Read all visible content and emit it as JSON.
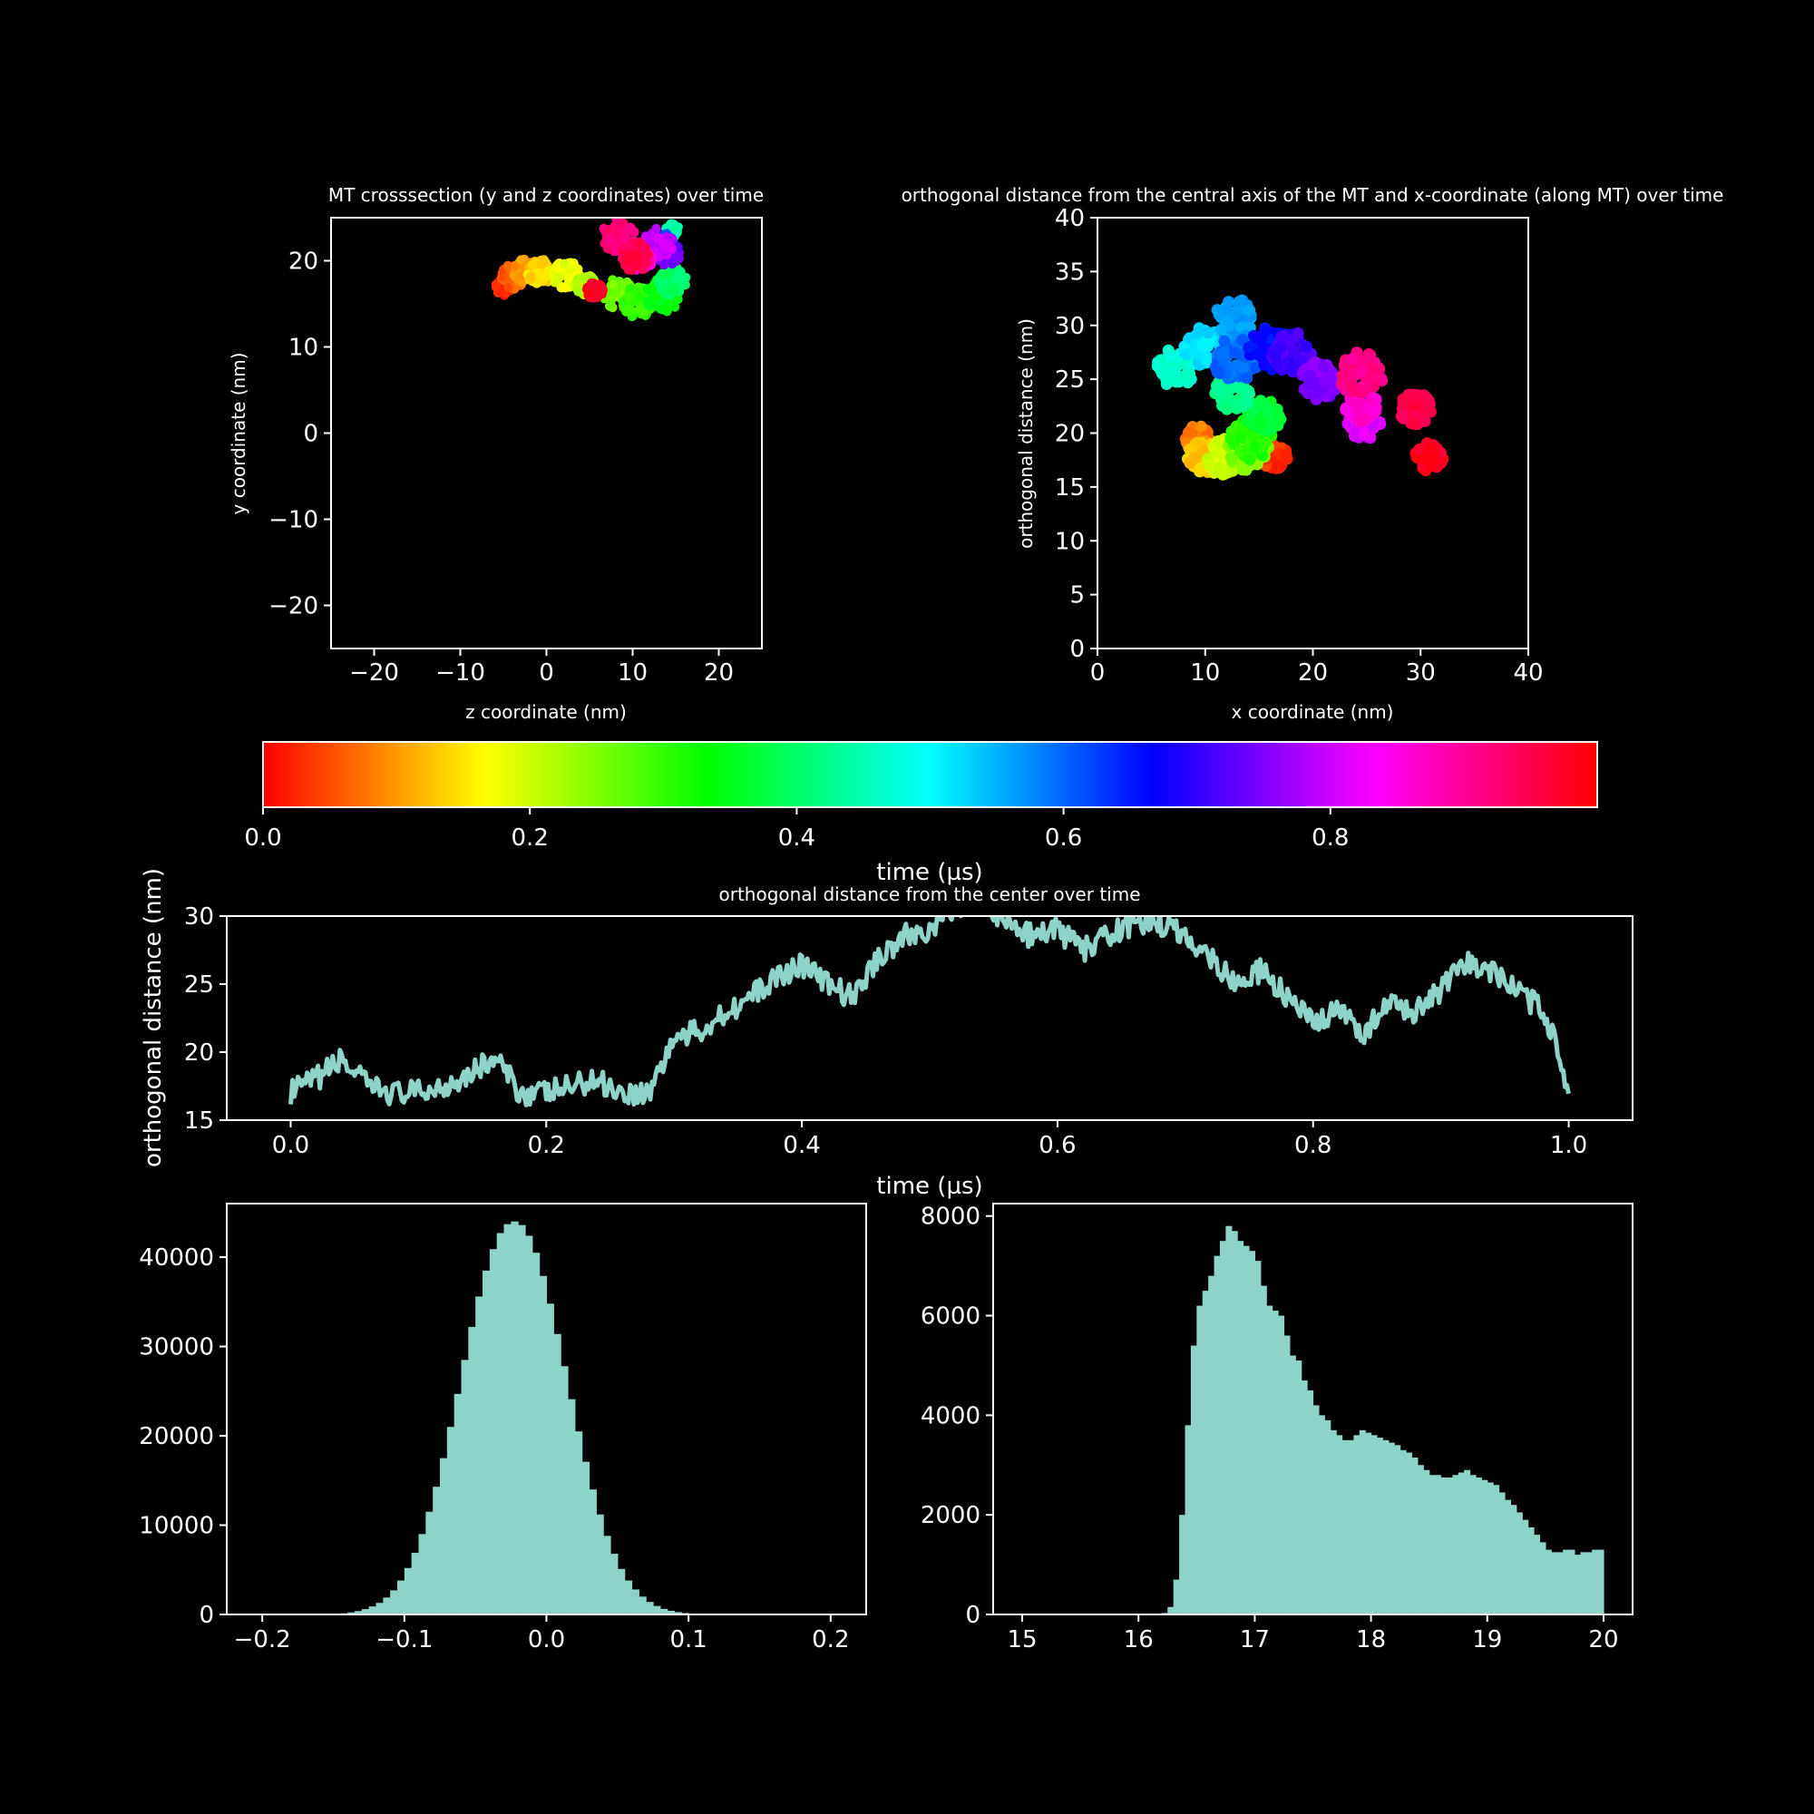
{
  "theme": {
    "background": "#000000",
    "foreground": "#ffffff",
    "series_color": "#8dd3c7"
  },
  "chart_data": [
    {
      "id": "crosssection",
      "type": "scatter",
      "title": "MT crosssection (y and z coordinates) over time",
      "xlabel": "z coordinate (nm)",
      "ylabel": "y coordinate (nm)",
      "xlim": [
        -25,
        25
      ],
      "ylim": [
        -25,
        25
      ],
      "xticks": [
        -20,
        -10,
        0,
        10,
        20
      ],
      "yticks": [
        -20,
        -10,
        0,
        10,
        20
      ],
      "color_by": "time (µs)",
      "clusters": [
        {
          "t": 0.02,
          "x": -5.0,
          "y": 17.0,
          "r": 1.0
        },
        {
          "t": 0.06,
          "x": -3.8,
          "y": 18.2,
          "r": 1.5
        },
        {
          "t": 0.1,
          "x": -2.5,
          "y": 18.8,
          "r": 1.4
        },
        {
          "t": 0.14,
          "x": -0.8,
          "y": 18.8,
          "r": 1.6
        },
        {
          "t": 0.18,
          "x": 2.3,
          "y": 18.3,
          "r": 1.7
        },
        {
          "t": 0.22,
          "x": 4.5,
          "y": 17.2,
          "r": 1.2
        },
        {
          "t": 0.26,
          "x": 8.3,
          "y": 16.2,
          "r": 1.8
        },
        {
          "t": 0.3,
          "x": 10.6,
          "y": 15.2,
          "r": 1.8
        },
        {
          "t": 0.34,
          "x": 13.5,
          "y": 16.0,
          "r": 2.0
        },
        {
          "t": 0.4,
          "x": 14.6,
          "y": 17.7,
          "r": 1.7
        },
        {
          "t": 0.44,
          "x": 14.6,
          "y": 23.5,
          "r": 0.8
        },
        {
          "t": 0.62,
          "x": 13.8,
          "y": 22.2,
          "r": 1.0
        },
        {
          "t": 0.74,
          "x": 14.2,
          "y": 20.8,
          "r": 1.4
        },
        {
          "t": 0.8,
          "x": 13.0,
          "y": 22.0,
          "r": 1.8
        },
        {
          "t": 0.86,
          "x": 11.0,
          "y": 20.2,
          "r": 1.4
        },
        {
          "t": 0.92,
          "x": 8.4,
          "y": 22.8,
          "r": 2.0
        },
        {
          "t": 0.95,
          "x": 10.2,
          "y": 20.5,
          "r": 1.8
        },
        {
          "t": 0.98,
          "x": 5.6,
          "y": 16.5,
          "r": 1.0
        }
      ]
    },
    {
      "id": "axial",
      "type": "scatter",
      "title": "orthogonal distance from the central axis of the MT and x-coordinate (along MT) over time",
      "xlabel": "x coordinate (nm)",
      "ylabel": "orthogonal distance (nm)",
      "xlim": [
        0,
        40
      ],
      "ylim": [
        0,
        40
      ],
      "xticks": [
        0,
        10,
        20,
        30,
        40
      ],
      "yticks": [
        0,
        5,
        10,
        15,
        20,
        25,
        30,
        35,
        40
      ],
      "color_by": "time (µs)",
      "clusters": [
        {
          "t": 0.03,
          "x": 16.5,
          "y": 17.8,
          "r": 1.2
        },
        {
          "t": 0.08,
          "x": 9.3,
          "y": 19.5,
          "r": 1.2
        },
        {
          "t": 0.13,
          "x": 9.8,
          "y": 17.8,
          "r": 1.5
        },
        {
          "t": 0.2,
          "x": 11.5,
          "y": 17.8,
          "r": 1.7
        },
        {
          "t": 0.25,
          "x": 14.0,
          "y": 18.5,
          "r": 2.0
        },
        {
          "t": 0.31,
          "x": 14.2,
          "y": 19.5,
          "r": 2.0
        },
        {
          "t": 0.37,
          "x": 15.5,
          "y": 21.5,
          "r": 1.6
        },
        {
          "t": 0.42,
          "x": 12.6,
          "y": 23.8,
          "r": 1.7
        },
        {
          "t": 0.47,
          "x": 7.2,
          "y": 26.0,
          "r": 1.8
        },
        {
          "t": 0.52,
          "x": 10.0,
          "y": 28.0,
          "r": 2.0
        },
        {
          "t": 0.56,
          "x": 12.8,
          "y": 30.5,
          "r": 2.0
        },
        {
          "t": 0.6,
          "x": 12.8,
          "y": 26.8,
          "r": 2.1
        },
        {
          "t": 0.66,
          "x": 16.0,
          "y": 27.8,
          "r": 2.0
        },
        {
          "t": 0.71,
          "x": 18.0,
          "y": 27.5,
          "r": 2.0
        },
        {
          "t": 0.75,
          "x": 20.5,
          "y": 24.8,
          "r": 1.8
        },
        {
          "t": 0.81,
          "x": 24.8,
          "y": 21.0,
          "r": 1.6
        },
        {
          "t": 0.86,
          "x": 24.5,
          "y": 22.5,
          "r": 1.5
        },
        {
          "t": 0.91,
          "x": 24.5,
          "y": 25.5,
          "r": 2.1
        },
        {
          "t": 0.95,
          "x": 29.5,
          "y": 22.3,
          "r": 1.5
        },
        {
          "t": 0.98,
          "x": 30.8,
          "y": 17.8,
          "r": 1.3
        }
      ]
    },
    {
      "id": "colorbar",
      "type": "colorbar",
      "label": "time (µs)",
      "range": [
        0,
        1
      ],
      "ticks": [
        "0.0",
        "0.2",
        "0.4",
        "0.6",
        "0.8"
      ],
      "colormap": "hsv"
    },
    {
      "id": "timeseries",
      "type": "line",
      "title": "orthogonal distance from the center over time",
      "xlabel": "time (µs)",
      "ylabel": "orthogonal distance (nm)",
      "xlim": [
        -0.05,
        1.05
      ],
      "ylim": [
        15,
        30
      ],
      "xticks": [
        "0.0",
        "0.2",
        "0.4",
        "0.6",
        "0.8",
        "1.0"
      ],
      "yticks": [
        15,
        20,
        25,
        30
      ],
      "x": [
        0,
        0.02,
        0.04,
        0.06,
        0.08,
        0.1,
        0.12,
        0.14,
        0.16,
        0.18,
        0.2,
        0.22,
        0.24,
        0.26,
        0.28,
        0.3,
        0.32,
        0.34,
        0.36,
        0.38,
        0.4,
        0.42,
        0.44,
        0.46,
        0.48,
        0.5,
        0.52,
        0.54,
        0.56,
        0.58,
        0.6,
        0.62,
        0.64,
        0.66,
        0.68,
        0.7,
        0.72,
        0.74,
        0.76,
        0.78,
        0.8,
        0.82,
        0.84,
        0.86,
        0.88,
        0.9,
        0.92,
        0.94,
        0.96,
        0.98,
        0.99,
        1.0
      ],
      "y": [
        17.0,
        18.0,
        19.5,
        17.5,
        17.0,
        17.0,
        17.5,
        18.5,
        19.5,
        17.0,
        17.0,
        17.5,
        18.0,
        17.0,
        17.0,
        21.0,
        21.5,
        23.0,
        24.0,
        25.5,
        26.5,
        25.0,
        24.0,
        27.0,
        28.5,
        29.0,
        30.5,
        31.5,
        29.5,
        28.5,
        29.0,
        27.5,
        28.5,
        29.5,
        29.5,
        28.5,
        27.0,
        25.0,
        26.0,
        24.0,
        22.0,
        23.0,
        21.5,
        23.5,
        23.0,
        24.5,
        26.5,
        26.0,
        24.5,
        23.0,
        21.0,
        16.5
      ]
    },
    {
      "id": "hist1",
      "type": "bar",
      "xlim": [
        -0.225,
        0.225
      ],
      "ylim": [
        0,
        46000
      ],
      "xticks": [
        "−0.2",
        "−0.1",
        "0.0",
        "0.1",
        "0.2"
      ],
      "yticks": [
        "0",
        "10000",
        "20000",
        "30000",
        "40000"
      ],
      "bin_width": 0.005,
      "x": [
        -0.2,
        -0.195,
        -0.19,
        -0.185,
        -0.18,
        -0.175,
        -0.17,
        -0.165,
        -0.16,
        -0.155,
        -0.15,
        -0.145,
        -0.14,
        -0.135,
        -0.13,
        -0.125,
        -0.12,
        -0.115,
        -0.11,
        -0.105,
        -0.1,
        -0.095,
        -0.09,
        -0.085,
        -0.08,
        -0.075,
        -0.07,
        -0.065,
        -0.06,
        -0.055,
        -0.05,
        -0.045,
        -0.04,
        -0.035,
        -0.03,
        -0.025,
        -0.02,
        -0.015,
        -0.01,
        -0.005,
        0.0,
        0.005,
        0.01,
        0.015,
        0.02,
        0.025,
        0.03,
        0.035,
        0.04,
        0.045,
        0.05,
        0.055,
        0.06,
        0.065,
        0.07,
        0.075,
        0.08,
        0.085,
        0.09,
        0.095,
        0.1,
        0.105,
        0.11,
        0.115,
        0.12,
        0.125,
        0.13,
        0.135,
        0.14,
        0.145,
        0.15,
        0.155,
        0.16,
        0.165,
        0.17,
        0.175,
        0.18,
        0.185,
        0.19,
        0.195
      ],
      "values": [
        0,
        0,
        0,
        0,
        0,
        0,
        0,
        10,
        20,
        40,
        70,
        130,
        230,
        380,
        600,
        900,
        1300,
        1900,
        2700,
        3800,
        5200,
        6900,
        9000,
        11500,
        14300,
        17500,
        21000,
        24700,
        28500,
        32200,
        35600,
        38500,
        40900,
        42700,
        43700,
        44000,
        43600,
        42400,
        40500,
        37900,
        34800,
        31400,
        27800,
        24100,
        20500,
        17100,
        14000,
        11200,
        8800,
        6800,
        5100,
        3800,
        2800,
        2000,
        1400,
        950,
        630,
        410,
        260,
        160,
        100,
        60,
        35,
        20,
        10,
        5,
        0,
        0,
        0,
        0,
        0,
        0,
        0,
        0,
        0,
        0,
        0,
        0,
        0,
        0
      ]
    },
    {
      "id": "hist2",
      "type": "bar",
      "xlim": [
        14.75,
        20.25
      ],
      "ylim": [
        0,
        8250
      ],
      "xticks": [
        "15",
        "16",
        "17",
        "18",
        "19",
        "20"
      ],
      "yticks": [
        "0",
        "2000",
        "4000",
        "6000",
        "8000"
      ],
      "bin_width": 0.05,
      "x": [
        16.2,
        16.25,
        16.3,
        16.35,
        16.4,
        16.45,
        16.5,
        16.55,
        16.6,
        16.65,
        16.7,
        16.75,
        16.8,
        16.85,
        16.9,
        16.95,
        17.0,
        17.05,
        17.1,
        17.15,
        17.2,
        17.25,
        17.3,
        17.35,
        17.4,
        17.45,
        17.5,
        17.55,
        17.6,
        17.65,
        17.7,
        17.75,
        17.8,
        17.85,
        17.9,
        17.95,
        18.0,
        18.05,
        18.1,
        18.15,
        18.2,
        18.25,
        18.3,
        18.35,
        18.4,
        18.45,
        18.5,
        18.55,
        18.6,
        18.65,
        18.7,
        18.75,
        18.8,
        18.85,
        18.9,
        18.95,
        19.0,
        19.05,
        19.1,
        19.15,
        19.2,
        19.25,
        19.3,
        19.35,
        19.4,
        19.45,
        19.5,
        19.55,
        19.6,
        19.65,
        19.7,
        19.75,
        19.8,
        19.85,
        19.9,
        19.95
      ],
      "values": [
        30,
        150,
        700,
        2000,
        3800,
        5400,
        6200,
        6500,
        6800,
        7200,
        7500,
        7800,
        7700,
        7500,
        7400,
        7300,
        7100,
        6600,
        6200,
        6100,
        6000,
        5600,
        5200,
        5100,
        4700,
        4500,
        4200,
        4000,
        3900,
        3700,
        3600,
        3500,
        3500,
        3600,
        3700,
        3650,
        3600,
        3550,
        3500,
        3450,
        3400,
        3300,
        3250,
        3150,
        3000,
        2900,
        2800,
        2800,
        2750,
        2750,
        2800,
        2850,
        2900,
        2800,
        2750,
        2700,
        2650,
        2600,
        2450,
        2300,
        2200,
        2050,
        1900,
        1750,
        1600,
        1450,
        1300,
        1250,
        1250,
        1300,
        1300,
        1200,
        1250,
        1250,
        1300,
        1300
      ]
    }
  ]
}
